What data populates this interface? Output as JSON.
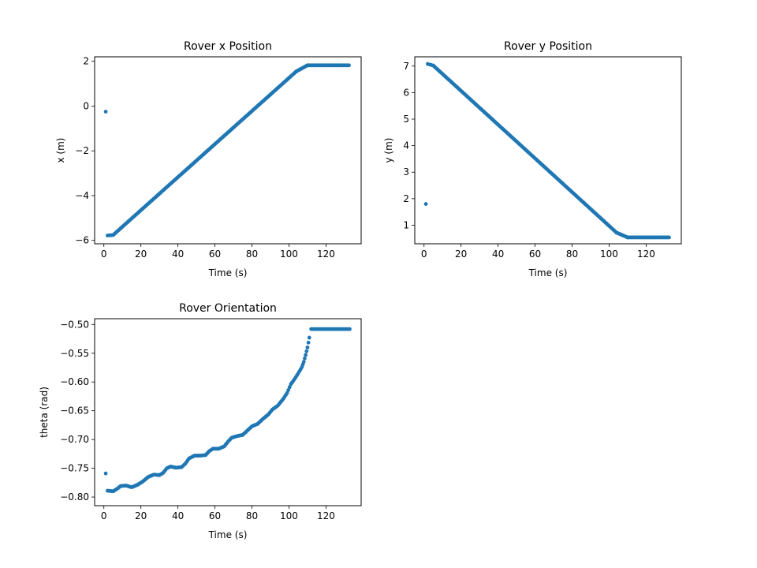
{
  "figure": {
    "background": "#ffffff",
    "marker_color": "#1f77b4"
  },
  "chart_data": [
    {
      "type": "scatter",
      "title": "Rover x Position",
      "xlabel": "Time (s)",
      "ylabel": "x (m)",
      "xlim": [
        -5,
        139
      ],
      "ylim": [
        -6.15,
        2.2
      ],
      "xticks": [
        0,
        20,
        40,
        60,
        80,
        100,
        120
      ],
      "yticks": [
        -6,
        -4,
        -2,
        0,
        2
      ],
      "xtick_labels": [
        "0",
        "20",
        "40",
        "60",
        "80",
        "100",
        "120"
      ],
      "ytick_labels": [
        "−6",
        "−4",
        "−2",
        "0",
        "2"
      ],
      "outliers": [
        [
          1,
          -0.25
        ]
      ],
      "segments": [
        {
          "x0": 2,
          "x1": 5,
          "y0": -5.78,
          "y1": -5.76,
          "step": 1
        },
        {
          "x0": 5,
          "x1": 104,
          "y0": -5.76,
          "y1": 1.55,
          "step": 0.6
        },
        {
          "x0": 104,
          "x1": 110,
          "y0": 1.55,
          "y1": 1.82,
          "step": 0.6
        },
        {
          "x0": 110,
          "x1": 133,
          "y0": 1.82,
          "y1": 1.82,
          "step": 0.7
        }
      ]
    },
    {
      "type": "scatter",
      "title": "Rover y Position",
      "xlabel": "Time (s)",
      "ylabel": "y (m)",
      "xlim": [
        -5,
        139
      ],
      "ylim": [
        0.3,
        7.35
      ],
      "xticks": [
        0,
        20,
        40,
        60,
        80,
        100,
        120
      ],
      "yticks": [
        1,
        2,
        3,
        4,
        5,
        6,
        7
      ],
      "xtick_labels": [
        "0",
        "20",
        "40",
        "60",
        "80",
        "100",
        "120"
      ],
      "ytick_labels": [
        "1",
        "2",
        "3",
        "4",
        "5",
        "6",
        "7"
      ],
      "outliers": [
        [
          1,
          1.8
        ]
      ],
      "segments": [
        {
          "x0": 2,
          "x1": 5,
          "y0": 7.08,
          "y1": 7.02,
          "step": 1
        },
        {
          "x0": 5,
          "x1": 104,
          "y0": 7.02,
          "y1": 0.72,
          "step": 0.6
        },
        {
          "x0": 104,
          "x1": 110,
          "y0": 0.72,
          "y1": 0.54,
          "step": 0.6
        },
        {
          "x0": 110,
          "x1": 133,
          "y0": 0.54,
          "y1": 0.54,
          "step": 0.7
        }
      ]
    },
    {
      "type": "scatter",
      "title": "Rover Orientation",
      "xlabel": "Time (s)",
      "ylabel": "theta (rad)",
      "xlim": [
        -5,
        139
      ],
      "ylim": [
        -0.815,
        -0.49
      ],
      "xticks": [
        0,
        20,
        40,
        60,
        80,
        100,
        120
      ],
      "yticks": [
        -0.8,
        -0.75,
        -0.7,
        -0.65,
        -0.6,
        -0.55,
        -0.5
      ],
      "xtick_labels": [
        "0",
        "20",
        "40",
        "60",
        "80",
        "100",
        "120"
      ],
      "ytick_labels": [
        "−0.80",
        "−0.75",
        "−0.70",
        "−0.65",
        "−0.60",
        "−0.55",
        "−0.50"
      ],
      "outliers": [
        [
          1,
          -0.759
        ]
      ],
      "curve": [
        [
          2,
          -0.789
        ],
        [
          5,
          -0.79
        ],
        [
          7,
          -0.786
        ],
        [
          9,
          -0.781
        ],
        [
          12,
          -0.78
        ],
        [
          15,
          -0.783
        ],
        [
          18,
          -0.779
        ],
        [
          21,
          -0.773
        ],
        [
          24,
          -0.765
        ],
        [
          27,
          -0.761
        ],
        [
          30,
          -0.762
        ],
        [
          32,
          -0.758
        ],
        [
          34,
          -0.75
        ],
        [
          36,
          -0.747
        ],
        [
          39,
          -0.749
        ],
        [
          42,
          -0.748
        ],
        [
          44,
          -0.742
        ],
        [
          46,
          -0.733
        ],
        [
          49,
          -0.728
        ],
        [
          52,
          -0.728
        ],
        [
          55,
          -0.727
        ],
        [
          57,
          -0.72
        ],
        [
          59,
          -0.716
        ],
        [
          62,
          -0.716
        ],
        [
          65,
          -0.712
        ],
        [
          67,
          -0.704
        ],
        [
          69,
          -0.697
        ],
        [
          72,
          -0.694
        ],
        [
          75,
          -0.692
        ],
        [
          78,
          -0.683
        ],
        [
          80,
          -0.677
        ],
        [
          83,
          -0.673
        ],
        [
          86,
          -0.664
        ],
        [
          89,
          -0.656
        ],
        [
          91,
          -0.648
        ],
        [
          94,
          -0.641
        ],
        [
          97,
          -0.629
        ],
        [
          99,
          -0.619
        ],
        [
          101,
          -0.604
        ],
        [
          103,
          -0.595
        ],
        [
          105,
          -0.585
        ],
        [
          107,
          -0.574
        ],
        [
          108,
          -0.565
        ],
        [
          109,
          -0.553
        ],
        [
          110,
          -0.54
        ],
        [
          111,
          -0.523
        ]
      ],
      "segments": [
        {
          "x0": 112,
          "x1": 133,
          "y0": -0.508,
          "y1": -0.508,
          "step": 0.8
        }
      ]
    }
  ]
}
